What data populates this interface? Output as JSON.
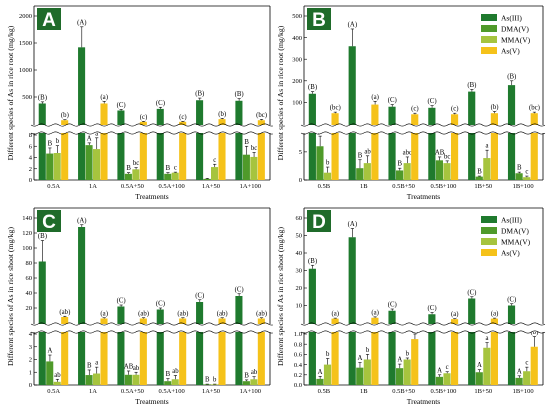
{
  "colors": {
    "As(III)": "#1f7a2e",
    "DMA(V)": "#4f9a2a",
    "MMA(V)": "#a6c43e",
    "As(V)": "#f5c21a"
  },
  "chart_data": [
    {
      "type": "bar",
      "panel": "A",
      "categories": [
        "0.5A",
        "1A",
        "0.5A+50",
        "0.5A+100",
        "1A+50",
        "1A+100"
      ],
      "xlabel": "Treatments",
      "ylabel": "Different species of As in rice root (mg/kg)",
      "upper": {
        "ylim": [
          0,
          2000
        ],
        "ticks": [
          500,
          1000,
          1500,
          2000
        ]
      },
      "lower": {
        "ylim": [
          0,
          8
        ],
        "ticks": [
          0,
          2,
          4,
          6,
          8
        ]
      },
      "legend": "none",
      "series": [
        {
          "name": "As(III)",
          "values": [
            380,
            1420,
            250,
            280,
            440,
            430
          ],
          "err": [
            30,
            380,
            20,
            30,
            40,
            40
          ],
          "letters": [
            "(B)",
            "(A)",
            "(C)",
            "(C)",
            "(B)",
            "(B)"
          ]
        },
        {
          "name": "DMA(V)",
          "values": [
            4.7,
            6.2,
            1.1,
            1.1,
            0.2,
            4.5
          ],
          "err": [
            1.0,
            0.4,
            0.2,
            0.2,
            0.1,
            1.5
          ],
          "letters": [
            "B",
            "A",
            "B",
            "B",
            "",
            "B"
          ]
        },
        {
          "name": "MMA(V)",
          "values": [
            4.8,
            5.5,
            1.9,
            1.3,
            2.3,
            4.1
          ],
          "err": [
            1.3,
            2.0,
            0.3,
            0.1,
            0.5,
            0.8
          ],
          "letters": [
            "b",
            "a",
            "bc",
            "c",
            "c",
            "bc"
          ]
        },
        {
          "name": "As(V)",
          "values": [
            70,
            380,
            40,
            40,
            90,
            70
          ],
          "err": [
            10,
            40,
            10,
            10,
            15,
            15
          ],
          "letters": [
            "(b)",
            "(a)",
            "(c)",
            "(c)",
            "(b)",
            "(bc)"
          ]
        }
      ]
    },
    {
      "type": "bar",
      "panel": "B",
      "categories": [
        "0.5B",
        "1B",
        "0.5B+50",
        "0.5B+100",
        "1B+50",
        "1B+100"
      ],
      "xlabel": "Treatments",
      "ylabel": "Different species of As in rice root (mg/kg)",
      "upper": {
        "ylim": [
          0,
          500
        ],
        "ticks": [
          100,
          200,
          300,
          400,
          500
        ]
      },
      "lower": {
        "ylim": [
          0,
          8
        ],
        "ticks": [
          0,
          5
        ]
      },
      "legend": "top-right",
      "series": [
        {
          "name": "As(III)",
          "values": [
            140,
            360,
            80,
            75,
            150,
            180
          ],
          "err": [
            10,
            80,
            10,
            10,
            10,
            20
          ],
          "letters": [
            "(B)",
            "(A)",
            "(C)",
            "(C)",
            "(B)",
            "(B)"
          ]
        },
        {
          "name": "DMA(V)",
          "values": [
            6.0,
            2.1,
            1.7,
            3.5,
            0.6,
            1.2
          ],
          "err": [
            1.8,
            1.5,
            0.4,
            0.6,
            0.1,
            0.2
          ],
          "letters": [
            "A",
            "B",
            "B",
            "AB",
            "B",
            "B"
          ]
        },
        {
          "name": "MMA(V)",
          "values": [
            1.3,
            3.0,
            3.0,
            3.0,
            3.9,
            0.5
          ],
          "err": [
            1.0,
            1.3,
            1.1,
            0.4,
            1.4,
            0.2
          ],
          "letters": [
            "b",
            "ab",
            "abc",
            "bc",
            "a",
            "c"
          ]
        },
        {
          "name": "As(V)",
          "values": [
            50,
            90,
            45,
            45,
            50,
            50
          ],
          "err": [
            5,
            15,
            5,
            5,
            8,
            5
          ],
          "letters": [
            "(bc)",
            "(a)",
            "(c)",
            "(c)",
            "(b)",
            "(bc)"
          ]
        }
      ]
    },
    {
      "type": "bar",
      "panel": "C",
      "categories": [
        "0.5A",
        "1A",
        "0.5A+50",
        "0.5A+100",
        "1A+50",
        "1A+100"
      ],
      "xlabel": "Treatments",
      "ylabel": "Different species of As in rice shoot (mg/kg)",
      "upper": {
        "ylim": [
          0,
          140
        ],
        "ticks": [
          20,
          40,
          60,
          80,
          100,
          120,
          140
        ]
      },
      "lower": {
        "ylim": [
          0,
          4
        ],
        "ticks": [
          0,
          1,
          2,
          3,
          4
        ]
      },
      "legend": "none",
      "series": [
        {
          "name": "As(III)",
          "values": [
            82,
            128,
            22,
            18,
            28,
            36
          ],
          "err": [
            28,
            3,
            2,
            2,
            3,
            3
          ],
          "letters": [
            "(B)",
            "(A)",
            "(C)",
            "(C)",
            "(C)",
            "(C)"
          ]
        },
        {
          "name": "DMA(V)",
          "values": [
            1.85,
            0.78,
            0.8,
            0.3,
            0.05,
            0.3
          ],
          "err": [
            0.5,
            0.4,
            0.3,
            0.2,
            0.02,
            0.1
          ],
          "letters": [
            "A",
            "B",
            "AB",
            "B",
            "B",
            "B"
          ]
        },
        {
          "name": "MMA(V)",
          "values": [
            0.25,
            0.9,
            0.8,
            0.45,
            0.05,
            0.45
          ],
          "err": [
            0.2,
            0.5,
            0.2,
            0.3,
            0.02,
            0.2
          ],
          "letters": [
            "ab",
            "a",
            "ab",
            "ab",
            "b",
            "ab"
          ]
        },
        {
          "name": "As(V)",
          "values": [
            8,
            6,
            6,
            6,
            6,
            6
          ],
          "err": [
            1,
            1,
            1,
            1,
            1,
            1
          ],
          "letters": [
            "(ab)",
            "(a)",
            "(ab)",
            "(ab)",
            "(ab)",
            "(ab)"
          ]
        }
      ]
    },
    {
      "type": "bar",
      "panel": "D",
      "categories": [
        "0.5B",
        "1B",
        "0.5B+50",
        "0.5B+100",
        "1B+50",
        "1B+100"
      ],
      "xlabel": "Treatments",
      "ylabel": "Different species of As in rice shoot (mg/kg)",
      "upper": {
        "ylim": [
          0,
          60
        ],
        "ticks": [
          10,
          20,
          30,
          40,
          50,
          60
        ]
      },
      "lower": {
        "ylim": [
          0,
          1.0
        ],
        "ticks": [
          0.0,
          0.2,
          0.4,
          0.6,
          0.8,
          1.0
        ]
      },
      "legend": "top-right",
      "series": [
        {
          "name": "As(III)",
          "values": [
            31,
            49,
            7,
            5,
            14,
            10
          ],
          "err": [
            2,
            5,
            1,
            1,
            1,
            1
          ],
          "letters": [
            "(B)",
            "(A)",
            "(C)",
            "(C)",
            "(C)",
            "(C)"
          ]
        },
        {
          "name": "DMA(V)",
          "values": [
            0.12,
            0.34,
            0.33,
            0.16,
            0.25,
            0.14
          ],
          "err": [
            0.05,
            0.1,
            0.08,
            0.04,
            0.05,
            0.04
          ],
          "letters": [
            "A",
            "A",
            "A",
            "A",
            "A",
            "A"
          ]
        },
        {
          "name": "MMA(V)",
          "values": [
            0.4,
            0.5,
            0.5,
            0.23,
            0.73,
            0.27
          ],
          "err": [
            0.12,
            0.1,
            0.03,
            0.03,
            0.1,
            0.08
          ],
          "letters": [
            "b",
            "b",
            "b",
            "c",
            "a",
            "c"
          ]
        },
        {
          "name": "As(V)",
          "values": [
            2.5,
            3,
            0.9,
            2.2,
            2.5,
            0.75
          ],
          "err": [
            0.3,
            0.5,
            0.1,
            0.3,
            0.3,
            0.2
          ],
          "letters": [
            "(a)",
            "(a)",
            "(b)",
            "(a)",
            "(a)",
            "(b)"
          ]
        }
      ]
    }
  ]
}
